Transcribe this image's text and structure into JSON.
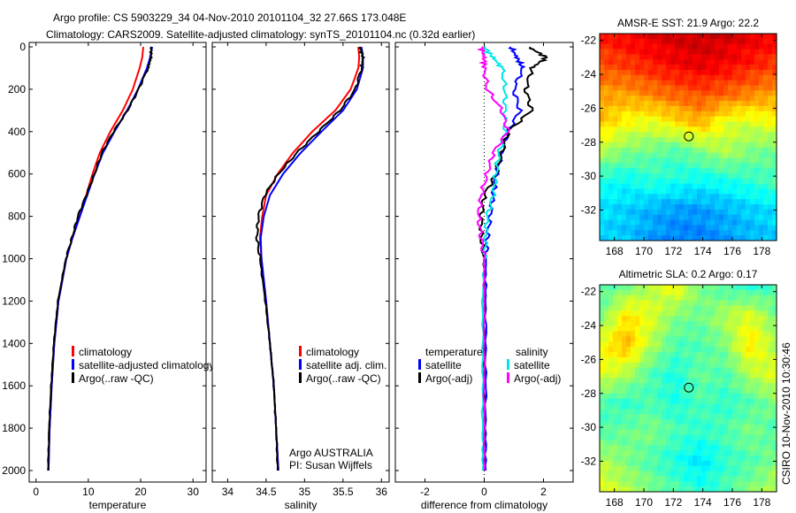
{
  "title_line1": "Argo profile: CS 5903229_34 04-Nov-2010 20101104_32 27.66S 173.048E",
  "title_line2": "Climatology: CARS2009. Satellite-adjusted climatology: synTS_20101104.nc (0.32d earlier)",
  "footer_stamp": "CSIRO 10-Nov-2010 10:30:46",
  "colors": {
    "red": "#ff0000",
    "blue": "#0000ff",
    "black": "#000000",
    "cyan": "#00e5e5",
    "magenta": "#ff00ff"
  },
  "chart_data": [
    {
      "type": "line",
      "id": "temperature",
      "xlabel": "temperature",
      "ylabel": "",
      "xlim": [
        -1.3,
        32.5
      ],
      "ylim": [
        2000,
        0
      ],
      "xticks": [
        "0",
        "10",
        "20",
        "30"
      ],
      "xtick_values": [
        0,
        10,
        20,
        30
      ],
      "yticks": [
        "0",
        "200",
        "400",
        "600",
        "800",
        "1000",
        "1200",
        "1400",
        "1600",
        "1800",
        "2000"
      ],
      "depth": [
        0,
        50,
        100,
        200,
        300,
        400,
        500,
        600,
        700,
        800,
        900,
        1000,
        1200,
        1400,
        1600,
        1800,
        2000
      ],
      "series": [
        {
          "name": "climatology",
          "color": "#ff0000",
          "values": [
            20.5,
            20.3,
            19.8,
            18.5,
            16.6,
            14.2,
            12.2,
            10.8,
            9.6,
            8.3,
            7.0,
            5.8,
            4.3,
            3.5,
            3.0,
            2.6,
            2.4
          ]
        },
        {
          "name": "satellite-adjusted climatology",
          "color": "#0000ff",
          "values": [
            22.2,
            21.8,
            21.2,
            19.5,
            17.4,
            15.0,
            12.8,
            11.2,
            9.8,
            8.4,
            7.0,
            5.8,
            4.3,
            3.5,
            3.0,
            2.6,
            2.4
          ]
        },
        {
          "name": "Argo(..raw -QC)",
          "color": "#000000",
          "values": [
            22.0,
            22.0,
            21.4,
            19.6,
            17.5,
            14.8,
            12.6,
            11.2,
            9.6,
            8.0,
            6.9,
            5.7,
            4.2,
            3.4,
            2.9,
            2.5,
            2.3
          ]
        }
      ],
      "legend": "bottom-right",
      "annotations": []
    },
    {
      "type": "line",
      "id": "salinity",
      "xlabel": "salinity",
      "xlim": [
        33.8,
        36.1
      ],
      "ylim": [
        2000,
        0
      ],
      "xticks": [
        "34",
        "34.5",
        "35",
        "35.5",
        "36"
      ],
      "xtick_values": [
        34,
        34.5,
        35,
        35.5,
        36
      ],
      "depth": [
        0,
        50,
        100,
        200,
        300,
        400,
        500,
        600,
        700,
        800,
        900,
        1000,
        1200,
        1400,
        1600,
        1800,
        2000
      ],
      "series": [
        {
          "name": "climatology",
          "color": "#ff0000",
          "values": [
            35.7,
            35.71,
            35.7,
            35.6,
            35.4,
            35.1,
            34.85,
            34.65,
            34.5,
            34.45,
            34.42,
            34.44,
            34.5,
            34.55,
            34.6,
            34.63,
            34.66
          ]
        },
        {
          "name": "satellite adj. clim.",
          "color": "#0000ff",
          "values": [
            35.74,
            35.76,
            35.76,
            35.68,
            35.5,
            35.22,
            34.95,
            34.72,
            34.55,
            34.47,
            34.43,
            34.44,
            34.5,
            34.55,
            34.6,
            34.63,
            34.66
          ]
        },
        {
          "name": "Argo(..raw -QC)",
          "color": "#000000",
          "values": [
            35.72,
            35.76,
            35.74,
            35.66,
            35.46,
            35.18,
            34.9,
            34.66,
            34.48,
            34.4,
            34.38,
            34.42,
            34.49,
            34.55,
            34.6,
            34.63,
            34.65
          ]
        }
      ],
      "legend": "bottom-right",
      "annotations": [
        "Argo AUSTRALIA",
        "PI: Susan Wijffels"
      ]
    },
    {
      "type": "line",
      "id": "difference",
      "xlabel": "difference from climatology",
      "xlim": [
        -3,
        3
      ],
      "ylim": [
        2000,
        0
      ],
      "xticks": [
        "-2",
        "0",
        "2"
      ],
      "xtick_values": [
        -2,
        0,
        2
      ],
      "depth": [
        0,
        50,
        100,
        200,
        300,
        400,
        500,
        600,
        700,
        800,
        900,
        1000,
        1200,
        1500,
        1800,
        2000
      ],
      "legend_groups": [
        "temperature",
        "salinity"
      ],
      "series": [
        {
          "name": "satellite",
          "group": "temperature",
          "color": "#0000ff",
          "values": [
            0.9,
            1.1,
            1.3,
            1.0,
            1.2,
            0.8,
            0.6,
            0.4,
            0.3,
            0.2,
            0.1,
            0.05,
            0.05,
            0.05,
            0.05,
            0.05
          ]
        },
        {
          "name": "Argo(-adj)",
          "group": "temperature",
          "color": "#000000",
          "values": [
            1.5,
            2.1,
            1.6,
            1.4,
            1.6,
            0.8,
            0.6,
            0.4,
            0.0,
            -0.1,
            -0.1,
            0.0,
            0.0,
            0.0,
            0.0,
            0.0
          ]
        },
        {
          "name": "satellite",
          "group": "salinity",
          "color": "#00e5e5",
          "values": [
            0.0,
            0.3,
            0.6,
            0.7,
            0.7,
            0.7,
            0.5,
            0.4,
            0.3,
            0.1,
            0.05,
            0.0,
            -0.05,
            -0.05,
            -0.05,
            -0.05
          ]
        },
        {
          "name": "Argo(-adj)",
          "group": "salinity",
          "color": "#ff00ff",
          "values": [
            -0.1,
            0.0,
            0.0,
            0.1,
            0.6,
            0.8,
            0.3,
            0.1,
            -0.1,
            -0.2,
            -0.1,
            0.0,
            0.0,
            0.0,
            0.0,
            0.0
          ]
        }
      ],
      "legend": "bottom"
    },
    {
      "type": "heatmap",
      "id": "sst-map",
      "title": "AMSR-E SST: 21.9 Argo: 22.2",
      "xlim": [
        167,
        179
      ],
      "ylim": [
        -33.8,
        -21.6
      ],
      "xticks": [
        "168",
        "170",
        "172",
        "174",
        "176",
        "178"
      ],
      "xtick_values": [
        168,
        170,
        172,
        174,
        176,
        178
      ],
      "yticks": [
        "-22",
        "-24",
        "-26",
        "-28",
        "-30",
        "-32"
      ],
      "ytick_values": [
        -22,
        -24,
        -26,
        -28,
        -30,
        -32
      ],
      "marker": {
        "lon": 173.048,
        "lat": -27.66
      },
      "grid_normalized": [
        [
          0.85,
          0.88,
          0.9,
          0.92,
          0.93,
          0.92,
          0.9,
          0.88
        ],
        [
          0.8,
          0.82,
          0.85,
          0.88,
          0.9,
          0.88,
          0.85,
          0.82
        ],
        [
          0.72,
          0.72,
          0.75,
          0.78,
          0.8,
          0.78,
          0.75,
          0.72
        ],
        [
          0.68,
          0.62,
          0.6,
          0.65,
          0.7,
          0.6,
          0.58,
          0.62
        ],
        [
          0.55,
          0.5,
          0.48,
          0.45,
          0.5,
          0.55,
          0.5,
          0.48
        ],
        [
          0.4,
          0.38,
          0.42,
          0.4,
          0.38,
          0.4,
          0.42,
          0.45
        ],
        [
          0.35,
          0.33,
          0.3,
          0.28,
          0.28,
          0.3,
          0.33,
          0.35
        ],
        [
          0.33,
          0.32,
          0.28,
          0.25,
          0.25,
          0.28,
          0.3,
          0.32
        ]
      ]
    },
    {
      "type": "heatmap",
      "id": "sla-map",
      "title": "Altimetric SLA: 0.2 Argo: 0.17",
      "xlim": [
        167,
        179
      ],
      "ylim": [
        -33.8,
        -21.6
      ],
      "xticks": [
        "168",
        "170",
        "172",
        "174",
        "176",
        "178"
      ],
      "xtick_values": [
        168,
        170,
        172,
        174,
        176,
        178
      ],
      "yticks": [
        "-22",
        "-24",
        "-26",
        "-28",
        "-30",
        "-32"
      ],
      "ytick_values": [
        -22,
        -24,
        -26,
        -28,
        -30,
        -32
      ],
      "marker": {
        "lon": 173.048,
        "lat": -27.66
      },
      "grid_normalized": [
        [
          0.45,
          0.5,
          0.55,
          0.62,
          0.5,
          0.45,
          0.42,
          0.45
        ],
        [
          0.5,
          0.65,
          0.6,
          0.5,
          0.48,
          0.55,
          0.6,
          0.5
        ],
        [
          0.62,
          0.7,
          0.55,
          0.45,
          0.45,
          0.5,
          0.65,
          0.55
        ],
        [
          0.6,
          0.55,
          0.45,
          0.4,
          0.48,
          0.45,
          0.55,
          0.6
        ],
        [
          0.45,
          0.42,
          0.45,
          0.4,
          0.45,
          0.42,
          0.45,
          0.5
        ],
        [
          0.45,
          0.48,
          0.5,
          0.45,
          0.42,
          0.45,
          0.5,
          0.45
        ],
        [
          0.55,
          0.5,
          0.45,
          0.4,
          0.35,
          0.42,
          0.45,
          0.5
        ],
        [
          0.6,
          0.55,
          0.5,
          0.45,
          0.4,
          0.45,
          0.5,
          0.55
        ]
      ]
    }
  ]
}
